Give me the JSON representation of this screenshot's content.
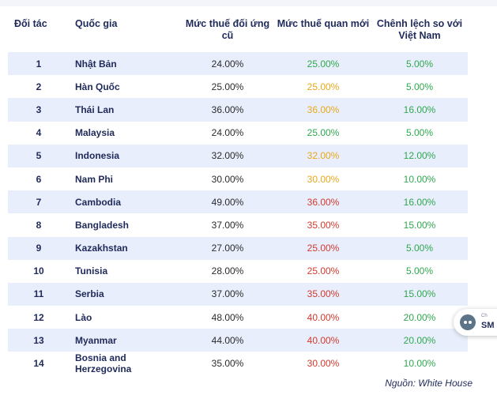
{
  "colors": {
    "green": "#2fa84f",
    "yellow": "#e7a91b",
    "red": "#d23a2f",
    "header_text": "#1f2a5a",
    "row_band": "#e8eefb"
  },
  "table": {
    "headers": {
      "partner": "Đối tác",
      "country": "Quốc gia",
      "old_rate": "Mức thuế đối ứng cũ",
      "new_rate": "Mức thuế quan mới",
      "diff": "Chênh lệch so với Việt Nam"
    },
    "rows": [
      {
        "partner": "1",
        "country": "Nhật Bản",
        "old_rate": "24.00%",
        "new_rate": "25.00%",
        "new_color": "green",
        "diff": "5.00%"
      },
      {
        "partner": "2",
        "country": "Hàn Quốc",
        "old_rate": "25.00%",
        "new_rate": "25.00%",
        "new_color": "yellow",
        "diff": "5.00%"
      },
      {
        "partner": "3",
        "country": "Thái Lan",
        "old_rate": "36.00%",
        "new_rate": "36.00%",
        "new_color": "yellow",
        "diff": "16.00%"
      },
      {
        "partner": "4",
        "country": "Malaysia",
        "old_rate": "24.00%",
        "new_rate": "25.00%",
        "new_color": "green",
        "diff": "5.00%"
      },
      {
        "partner": "5",
        "country": "Indonesia",
        "old_rate": "32.00%",
        "new_rate": "32.00%",
        "new_color": "yellow",
        "diff": "12.00%"
      },
      {
        "partner": "6",
        "country": "Nam Phi",
        "old_rate": "30.00%",
        "new_rate": "30.00%",
        "new_color": "yellow",
        "diff": "10.00%"
      },
      {
        "partner": "7",
        "country": "Cambodia",
        "old_rate": "49.00%",
        "new_rate": "36.00%",
        "new_color": "red",
        "diff": "16.00%"
      },
      {
        "partner": "8",
        "country": "Bangladesh",
        "old_rate": "37.00%",
        "new_rate": "35.00%",
        "new_color": "red",
        "diff": "15.00%"
      },
      {
        "partner": "9",
        "country": "Kazakhstan",
        "old_rate": "27.00%",
        "new_rate": "25.00%",
        "new_color": "red",
        "diff": "5.00%"
      },
      {
        "partner": "10",
        "country": "Tunisia",
        "old_rate": "28.00%",
        "new_rate": "25.00%",
        "new_color": "red",
        "diff": "5.00%"
      },
      {
        "partner": "11",
        "country": "Serbia",
        "old_rate": "37.00%",
        "new_rate": "35.00%",
        "new_color": "red",
        "diff": "15.00%"
      },
      {
        "partner": "12",
        "country": "Lào",
        "old_rate": "48.00%",
        "new_rate": "40.00%",
        "new_color": "red",
        "diff": "20.00%"
      },
      {
        "partner": "13",
        "country": "Myanmar",
        "old_rate": "44.00%",
        "new_rate": "40.00%",
        "new_color": "red",
        "diff": "20.00%"
      },
      {
        "partner": "14",
        "country": "Bosnia and Herzegovina",
        "old_rate": "35.00%",
        "new_rate": "30.00%",
        "new_color": "red",
        "diff": "10.00%"
      }
    ]
  },
  "source": "Nguồn: White House",
  "chat_widget": {
    "icon": "robot-icon",
    "small_text": "Ch",
    "strong_text": "SM"
  }
}
